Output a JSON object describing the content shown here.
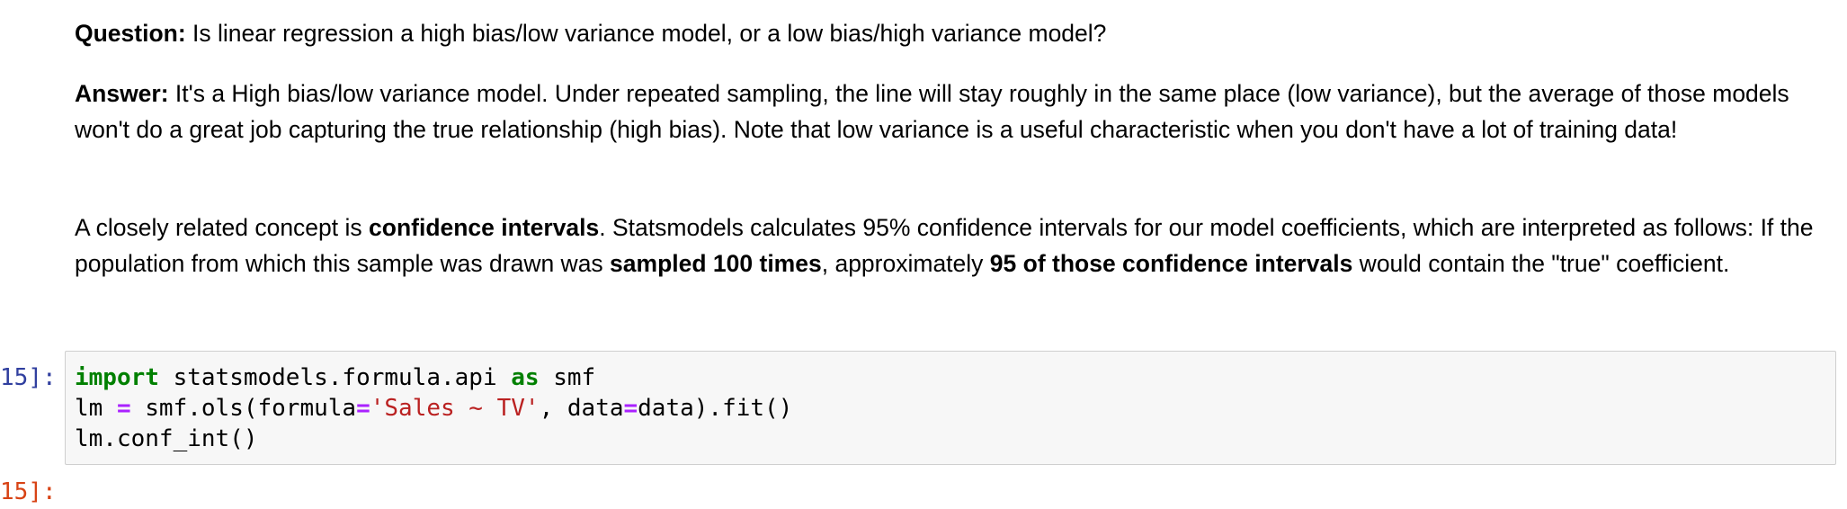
{
  "question": {
    "label": "Question:",
    "text": " Is linear regression a high bias/low variance model, or a low bias/high variance model?"
  },
  "answer": {
    "label": "Answer:",
    "text": " It's a High bias/low variance model. Under repeated sampling, the line will stay roughly in the same place (low variance), but the average of those models won't do a great job capturing the true relationship (high bias). Note that low variance is a useful characteristic when you don't have a lot of training data!"
  },
  "confidence": {
    "t1": "A closely related concept is ",
    "b1": "confidence intervals",
    "t2": ". Statsmodels calculates 95% confidence intervals for our model coefficients, which are interpreted as follows: If the population from which this sample was drawn was ",
    "b2": "sampled 100 times",
    "t3": ", approximately ",
    "b3": "95 of those confidence intervals",
    "t4": " would contain the \"true\" coefficient."
  },
  "cell": {
    "in_prompt": "15]:",
    "out_prompt": "15]:",
    "code": {
      "line1": {
        "kw_import": "import",
        "module": " statsmodels.formula.api ",
        "kw_as": "as",
        "alias": " smf"
      },
      "line2": {
        "var": "lm ",
        "eq1": "=",
        "call_start": " smf.ols(formula",
        "eq2": "=",
        "str": "'Sales ~ TV'",
        "mid": ", data",
        "eq3": "=",
        "end": "data).fit()"
      },
      "line3": {
        "text": "lm.conf_int()"
      }
    }
  },
  "colors": {
    "keyword": "#008000",
    "operator": "#aa22ff",
    "string": "#ba2121",
    "in_prompt": "#303f9f",
    "out_prompt": "#d84315",
    "cell_background": "#f7f7f7",
    "cell_border": "#cfcfcf"
  }
}
